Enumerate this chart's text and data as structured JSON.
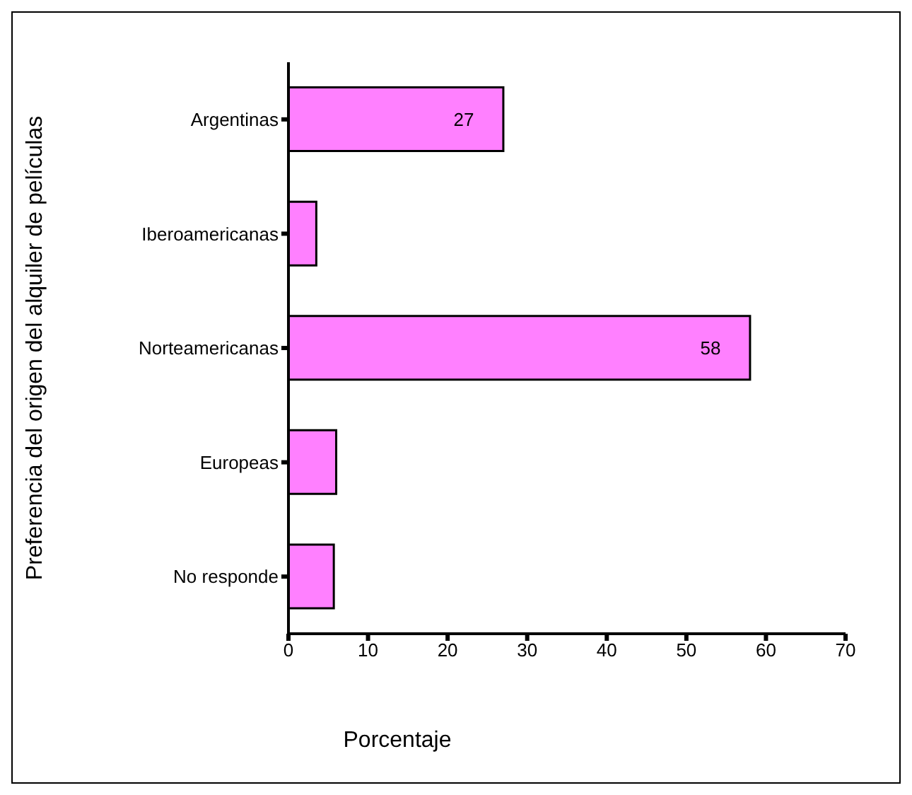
{
  "chart_data": {
    "type": "bar",
    "orientation": "horizontal",
    "xlabel": "Porcentaje",
    "ylabel": "Preferencia del origen del alquiler de películas",
    "categories": [
      "Argentinas",
      "Iberoamericanas",
      "Norteamericanas",
      "Europeas",
      "No responde"
    ],
    "values": [
      27,
      3.5,
      58,
      6,
      5.7
    ],
    "color": "#ff80ff",
    "value_labels": [
      "27",
      null,
      "58",
      null,
      null
    ],
    "xlim": [
      0,
      70
    ],
    "xticks": [
      0,
      10,
      20,
      30,
      40,
      50,
      60,
      70
    ],
    "grid": false,
    "legend": false
  }
}
